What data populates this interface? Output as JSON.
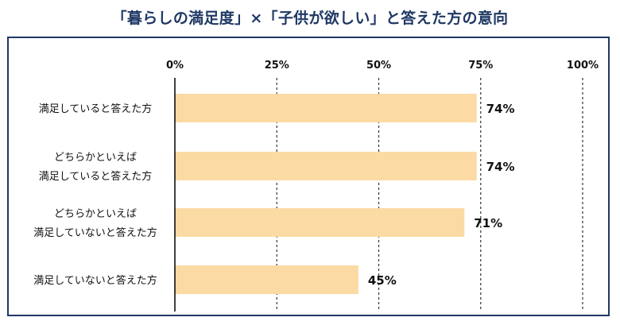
{
  "title": "「暮らしの満足度」×「子供が欲しい」と答えた方の意向",
  "colors": {
    "bar": "#fbdaa3",
    "axis": "#000000",
    "grid": "#333333",
    "title": "#1f3864"
  },
  "chart_data": {
    "type": "bar",
    "orientation": "horizontal",
    "title": "「暮らしの満足度」×「子供が欲しい」と答えた方の意向",
    "categories": [
      [
        "満足していると答えた方"
      ],
      [
        "どちらかといえば",
        "満足していると答えた方"
      ],
      [
        "どちらかといえば",
        "満足していないと答えた方"
      ],
      [
        "満足していないと答えた方"
      ]
    ],
    "values": [
      74,
      74,
      71,
      45
    ],
    "value_labels": [
      "74%",
      "74%",
      "71%",
      "45%"
    ],
    "xlim": [
      0,
      100
    ],
    "ticks": [
      0,
      25,
      50,
      75,
      100
    ],
    "tick_labels": [
      "0%",
      "25%",
      "50%",
      "75%",
      "100%"
    ],
    "xlabel": "",
    "ylabel": "",
    "grid": "vertical dashed",
    "legend": "none"
  }
}
